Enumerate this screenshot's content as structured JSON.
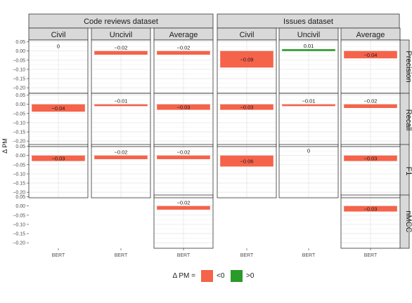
{
  "chart_data": {
    "type": "bar",
    "datasets": [
      "Code reviews dataset",
      "Issues dataset"
    ],
    "columns": [
      "Civil",
      "Uncivil",
      "Average"
    ],
    "metrics": [
      "Precision",
      "Recall",
      "F1",
      "nMCC"
    ],
    "x_category": "BERT",
    "ylabel": "Δ PM",
    "ylim": [
      -0.23,
      0.06
    ],
    "y_ticks": [
      0.05,
      0.0,
      -0.05,
      -0.1,
      -0.15,
      -0.2
    ],
    "y_tick_labels": [
      "0.05",
      "0.00",
      "−0.05",
      "−0.10",
      "−0.15",
      "−0.20"
    ],
    "grid": true,
    "legend": {
      "title": "Δ PM =",
      "position": "bottom",
      "entries": [
        {
          "label": "<0",
          "color": "#F4634A"
        },
        {
          "label": ">0",
          "color": "#2A9A2A"
        }
      ]
    },
    "cells": [
      {
        "dataset": 0,
        "column": 0,
        "metric": 0,
        "value": 0.0,
        "label": "0"
      },
      {
        "dataset": 0,
        "column": 1,
        "metric": 0,
        "value": -0.02,
        "label": "−0.02"
      },
      {
        "dataset": 0,
        "column": 2,
        "metric": 0,
        "value": -0.02,
        "label": "−0.02"
      },
      {
        "dataset": 1,
        "column": 0,
        "metric": 0,
        "value": -0.09,
        "label": "−0.09"
      },
      {
        "dataset": 1,
        "column": 1,
        "metric": 0,
        "value": 0.01,
        "label": "0.01"
      },
      {
        "dataset": 1,
        "column": 2,
        "metric": 0,
        "value": -0.04,
        "label": "−0.04"
      },
      {
        "dataset": 0,
        "column": 0,
        "metric": 1,
        "value": -0.04,
        "label": "−0.04"
      },
      {
        "dataset": 0,
        "column": 1,
        "metric": 1,
        "value": -0.01,
        "label": "−0.01"
      },
      {
        "dataset": 0,
        "column": 2,
        "metric": 1,
        "value": -0.03,
        "label": "−0.03"
      },
      {
        "dataset": 1,
        "column": 0,
        "metric": 1,
        "value": -0.03,
        "label": "−0.03"
      },
      {
        "dataset": 1,
        "column": 1,
        "metric": 1,
        "value": -0.01,
        "label": "−0.01"
      },
      {
        "dataset": 1,
        "column": 2,
        "metric": 1,
        "value": -0.02,
        "label": "−0.02"
      },
      {
        "dataset": 0,
        "column": 0,
        "metric": 2,
        "value": -0.03,
        "label": "−0.03"
      },
      {
        "dataset": 0,
        "column": 1,
        "metric": 2,
        "value": -0.02,
        "label": "−0.02"
      },
      {
        "dataset": 0,
        "column": 2,
        "metric": 2,
        "value": -0.02,
        "label": "−0.02"
      },
      {
        "dataset": 1,
        "column": 0,
        "metric": 2,
        "value": -0.06,
        "label": "−0.06"
      },
      {
        "dataset": 1,
        "column": 1,
        "metric": 2,
        "value": 0.0,
        "label": "0"
      },
      {
        "dataset": 1,
        "column": 2,
        "metric": 2,
        "value": -0.03,
        "label": "−0.03"
      },
      {
        "dataset": 0,
        "column": 2,
        "metric": 3,
        "value": -0.02,
        "label": "−0.02"
      },
      {
        "dataset": 1,
        "column": 2,
        "metric": 3,
        "value": -0.03,
        "label": "−0.03"
      }
    ]
  }
}
